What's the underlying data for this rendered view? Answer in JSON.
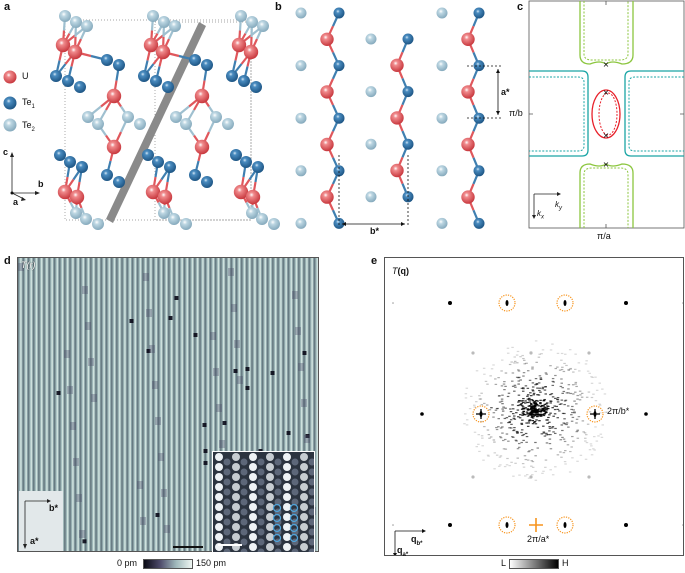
{
  "panel_labels": {
    "a": "a",
    "b": "b",
    "c": "c",
    "d": "d",
    "e": "e"
  },
  "panel_a": {
    "legend": [
      {
        "label": "U",
        "color": "#e0575c"
      },
      {
        "label": "Te",
        "sub": "1",
        "color": "#2f6fa3"
      },
      {
        "label": "Te",
        "sub": "2",
        "color": "#a9c8d8"
      }
    ],
    "axes": {
      "c": "c",
      "b": "b",
      "a": "a"
    }
  },
  "panel_b": {
    "b_star": "b*",
    "a_star": "a*"
  },
  "panel_c": {
    "y_tick": "π/b",
    "x_tick": "π/a",
    "axis_ky": "k",
    "axis_ky_sub": "y",
    "axis_kx": "k",
    "axis_kx_sub": "x",
    "colors": {
      "green": "#8cc63f",
      "teal": "#1aa5a5",
      "red": "#e8202a"
    }
  },
  "panel_d": {
    "title": "T(r)",
    "axis_b": "b*",
    "axis_a": "a*",
    "colorbar_min": "0 pm",
    "colorbar_max": "150 pm"
  },
  "panel_e": {
    "title_T": "T",
    "title_q": "(q)",
    "label_b": "2π/b*",
    "label_a": "2π/a*",
    "axis_qb": "q",
    "axis_qb_sub": "b*",
    "axis_qa": "q",
    "axis_qa_sub": "a*",
    "colorbar_min": "L",
    "colorbar_max": "H",
    "highlight_color": "#f7941d"
  }
}
